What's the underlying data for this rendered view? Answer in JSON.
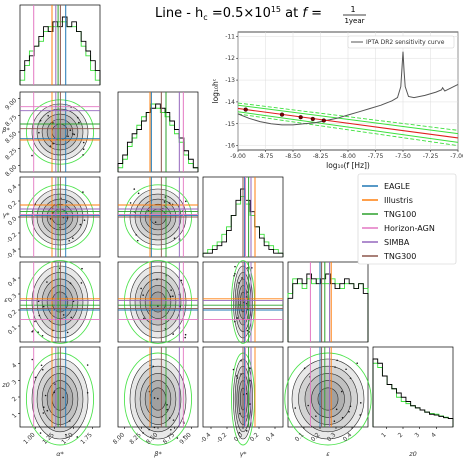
{
  "title": {
    "prefix": "Line - h",
    "sub": "c",
    "mid": " =0.5×10",
    "sup": "15",
    "at": " at ",
    "f": "f",
    "eq": " = ",
    "num": "1",
    "den": "1year"
  },
  "colors": {
    "EAGLE": "#1f77b4",
    "Illustris": "#ff7f0e",
    "TNG100": "#2ca02c",
    "Horizon-AGN": "#e377c2",
    "SIMBA": "#9467bd",
    "TNG300": "#8c564b",
    "posterior": "#000000",
    "prior": "#3ce03c",
    "fit_line": "#e02020",
    "fit_band": "#3ce03c",
    "sensitivity": "#555555"
  },
  "legend": [
    "EAGLE",
    "Illustris",
    "TNG100",
    "Horizon-AGN",
    "SIMBA",
    "TNG300"
  ],
  "chart_data": [
    {
      "type": "corner",
      "params": [
        "α*",
        "β*",
        "γ*",
        "ε",
        "z0"
      ],
      "axis_labels": [
        "α*",
        "β*",
        "γ*",
        "ε",
        "z0"
      ],
      "ranges": [
        [
          0.8,
          1.85
        ],
        [
          7.9,
          9.1
        ],
        [
          -0.5,
          0.5
        ],
        [
          0.0,
          0.5
        ],
        [
          0.2,
          5.0
        ]
      ],
      "ticks": [
        [
          "1.00",
          "1.25",
          "1.50",
          "1.75"
        ],
        [
          "8.00",
          "8.25",
          "8.50",
          "8.75",
          "9.00"
        ],
        [
          "-0.4",
          "-0.2",
          "0.0",
          "0.2",
          "0.4"
        ],
        [
          "0.1",
          "0.2",
          "0.3",
          "0.4"
        ],
        [
          "1",
          "2",
          "3",
          "4"
        ]
      ],
      "simulation_values": {
        "EAGLE": [
          1.4,
          8.4,
          0.02,
          0.2,
          0
        ],
        "Illustris": [
          1.22,
          8.38,
          0.15,
          0.27,
          0
        ],
        "TNG100": [
          1.3,
          8.62,
          0.07,
          0.23,
          0
        ],
        "Horizon-AGN": [
          0.98,
          8.88,
          0.03,
          0.14,
          0
        ],
        "SIMBA": [
          1.27,
          8.82,
          0.1,
          0.26,
          0
        ],
        "TNG300": [
          1.33,
          8.55,
          0.0,
          0.21,
          0
        ]
      },
      "marginals": {
        "α*": {
          "posterior": [
            3,
            5,
            6,
            8,
            10,
            12,
            11,
            13,
            12,
            14,
            12,
            13,
            11,
            9,
            7,
            5,
            3
          ],
          "prior": [
            1,
            4,
            7,
            8,
            9,
            11,
            12,
            12,
            13,
            13,
            12,
            12,
            11,
            8,
            6,
            3,
            1
          ]
        },
        "β*": {
          "posterior": [
            2,
            4,
            7,
            9,
            10,
            12,
            14,
            15,
            16,
            15,
            14,
            12,
            10,
            8,
            5,
            3,
            1
          ],
          "prior": [
            1,
            3,
            6,
            8,
            11,
            13,
            14,
            16,
            15,
            14,
            13,
            11,
            9,
            7,
            4,
            2,
            1
          ]
        },
        "γ*": {
          "posterior": [
            1,
            1,
            2,
            3,
            4,
            7,
            11,
            15,
            18,
            15,
            12,
            8,
            5,
            3,
            2,
            1,
            1
          ],
          "prior": [
            1,
            2,
            3,
            4,
            6,
            8,
            11,
            14,
            16,
            14,
            11,
            8,
            6,
            4,
            3,
            2,
            1
          ]
        },
        "ε": {
          "posterior": [
            9,
            12,
            13,
            12,
            14,
            13,
            12,
            13,
            14,
            12,
            11,
            12,
            13,
            12,
            11,
            12,
            10
          ],
          "prior": [
            10,
            13,
            12,
            11,
            13,
            12,
            13,
            12,
            12,
            13,
            12,
            11,
            12,
            12,
            11,
            12,
            11
          ]
        },
        "z0": {
          "posterior": [
            16,
            15,
            12,
            10,
            9,
            8,
            7,
            6,
            5,
            4.5,
            4,
            3.5,
            3,
            2.8,
            2.5,
            2.2,
            2
          ],
          "prior": [
            15,
            14,
            12,
            10,
            9,
            7,
            6,
            5.5,
            5,
            4.5,
            4,
            3.5,
            3.2,
            3,
            2.6,
            2.3,
            2
          ]
        }
      }
    },
    {
      "type": "line",
      "xlabel": "log₁₀(f [Hz])",
      "ylabel": "log₁₀hᶜ",
      "xlim": [
        -9.0,
        -7.0
      ],
      "ylim": [
        -16.2,
        -10.8
      ],
      "xticks": [
        "-9.00",
        "-8.75",
        "-8.50",
        "-8.25",
        "-8.00",
        "-7.75",
        "-7.50",
        "-7.25",
        "-7.00"
      ],
      "yticks": [
        "-11",
        "-12",
        "-13",
        "-14",
        "-15",
        "-16"
      ],
      "grid": true,
      "legend_position": "top-right",
      "series": [
        {
          "name": "IPTA DR2 sensitivity curve",
          "x": [
            -9.0,
            -8.9,
            -8.8,
            -8.7,
            -8.6,
            -8.5,
            -8.4,
            -8.3,
            -8.2,
            -8.1,
            -8.0,
            -7.9,
            -7.8,
            -7.7,
            -7.6,
            -7.55,
            -7.52,
            -7.51,
            -7.5,
            -7.49,
            -7.48,
            -7.45,
            -7.4,
            -7.3,
            -7.2,
            -7.15,
            -7.14,
            -7.12,
            -7.1,
            -7.0
          ],
          "y": [
            -14.55,
            -14.75,
            -14.9,
            -15.0,
            -15.05,
            -15.05,
            -15.0,
            -14.95,
            -14.85,
            -14.75,
            -14.6,
            -14.45,
            -14.3,
            -14.15,
            -13.95,
            -13.8,
            -13.3,
            -12.5,
            -11.7,
            -12.6,
            -13.3,
            -13.75,
            -13.8,
            -13.7,
            -13.55,
            -13.45,
            -13.35,
            -13.5,
            -13.45,
            -13.2
          ]
        },
        {
          "name": "",
          "x": [
            -9.0,
            -7.0
          ],
          "y": [
            -14.3,
            -15.65
          ]
        }
      ],
      "band": {
        "x": [
          -9.0,
          -7.0
        ],
        "upper": [
          -14.15,
          -15.45
        ],
        "lower": [
          -14.45,
          -15.85
        ]
      },
      "band_outer": {
        "x": [
          -9.0,
          -7.0
        ],
        "upper": [
          -14.05,
          -15.3
        ],
        "lower": [
          -14.55,
          -16.0
        ]
      },
      "points": {
        "x": [
          -8.93,
          -8.6,
          -8.43,
          -8.32,
          -8.22
        ],
        "y": [
          -14.35,
          -14.58,
          -14.7,
          -14.78,
          -14.85
        ]
      }
    }
  ]
}
